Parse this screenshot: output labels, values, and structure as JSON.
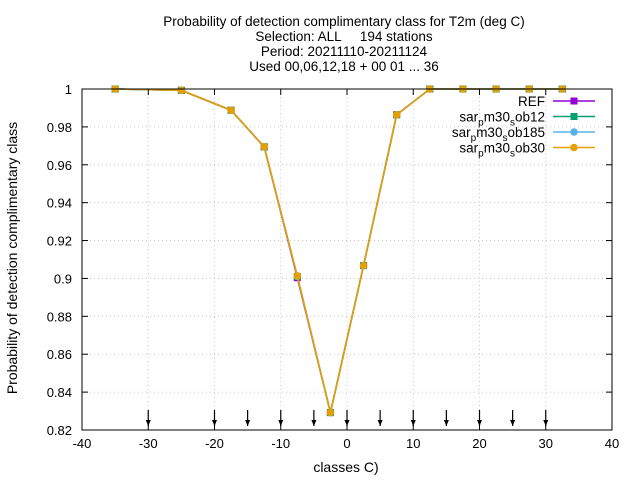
{
  "chart_data": {
    "type": "line",
    "title_lines": [
      "Probability of detection complimentary class  for T2m (deg C)",
      "Selection: ALL     194 stations",
      "Period: 20211110-20211124",
      "Used 00,06,12,18 + 00 01 ... 36"
    ],
    "xlabel": "classes C)",
    "ylabel": "Probability of detection complimentary class",
    "xlim": [
      -40,
      40
    ],
    "ylim": [
      0.82,
      1.0
    ],
    "xticks": [
      -40,
      -30,
      -20,
      -10,
      0,
      10,
      20,
      30,
      40
    ],
    "xtick_labels": [
      "-40",
      "-30",
      "-20",
      "-10",
      "0",
      "10",
      "20",
      "30",
      "40"
    ],
    "yticks": [
      0.82,
      0.84,
      0.86,
      0.88,
      0.9,
      0.92,
      0.94,
      0.96,
      0.98,
      1.0
    ],
    "ytick_labels": [
      "0.82",
      "0.84",
      "0.86",
      "0.88",
      "0.9",
      "0.92",
      "0.94",
      "0.96",
      "0.98",
      "1"
    ],
    "grid": true,
    "legend_position": "top-right",
    "class_marker_x": [
      -30,
      -20,
      -15,
      -10,
      -5,
      0,
      5,
      10,
      15,
      20,
      25,
      30
    ],
    "x": [
      -35,
      -25,
      -17.5,
      -12.5,
      -7.5,
      -2.5,
      2.5,
      7.5,
      12.5,
      17.5,
      22.5,
      27.5,
      32.5
    ],
    "series": [
      {
        "name": "REF",
        "name_parts": [
          [
            "REF",
            ""
          ]
        ],
        "color": "#9400d3",
        "marker": "square",
        "values": [
          1.0,
          0.9993,
          0.9888,
          0.9694,
          0.9004,
          0.8292,
          0.9068,
          0.9864,
          1.0,
          1.0,
          1.0,
          1.0,
          1.0
        ]
      },
      {
        "name": "sar_pm30_sob12",
        "name_parts": [
          [
            "sar",
            ""
          ],
          [
            "p",
            "sub"
          ],
          [
            "m30",
            ""
          ],
          [
            "s",
            "sub"
          ],
          [
            "ob12",
            ""
          ]
        ],
        "color": "#009e73",
        "marker": "square",
        "values": [
          1.0,
          0.9993,
          0.9888,
          0.9695,
          0.9011,
          0.8292,
          0.9068,
          0.9864,
          1.0,
          1.0,
          1.0,
          1.0,
          1.0
        ]
      },
      {
        "name": "sar_pm30_sob185",
        "name_parts": [
          [
            "sar",
            ""
          ],
          [
            "p",
            "sub"
          ],
          [
            "m30",
            ""
          ],
          [
            "s",
            "sub"
          ],
          [
            "ob185",
            ""
          ]
        ],
        "color": "#56b4e9",
        "marker": "circle",
        "values": [
          1.0,
          0.9993,
          0.9888,
          0.9695,
          0.9011,
          0.8292,
          0.9068,
          0.9864,
          1.0,
          1.0,
          1.0,
          1.0,
          1.0
        ]
      },
      {
        "name": "sar_pm30_sob30",
        "name_parts": [
          [
            "sar",
            ""
          ],
          [
            "p",
            "sub"
          ],
          [
            "m30",
            ""
          ],
          [
            "s",
            "sub"
          ],
          [
            "ob30",
            ""
          ]
        ],
        "color": "#e69f00",
        "marker": "circle",
        "values": [
          1.0,
          0.9993,
          0.9888,
          0.9695,
          0.9013,
          0.8292,
          0.9068,
          0.9864,
          1.0,
          1.0,
          1.0,
          1.0,
          1.0
        ]
      }
    ]
  }
}
